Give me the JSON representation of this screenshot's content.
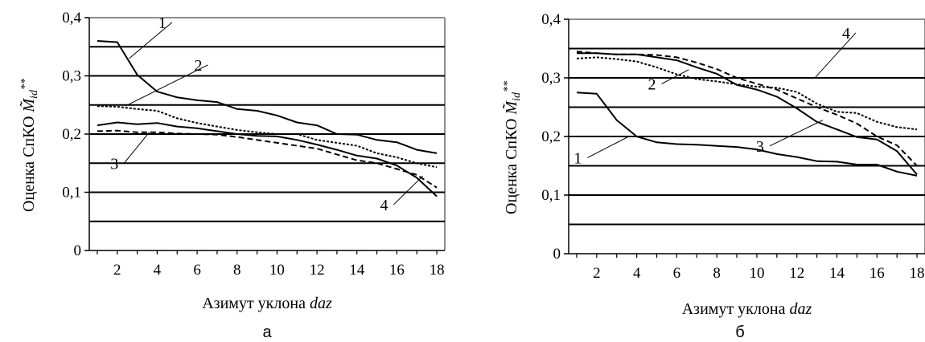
{
  "chart_data": [
    {
      "type": "line",
      "panel_label": "а",
      "xlabel_text": "Азимут уклона ",
      "xlabel_italic": "daz",
      "ylabel_text": "Оценка СпКО ",
      "ylabel_symbol": "M̃",
      "ylabel_sub": "id",
      "ylabel_sup": "**",
      "xlim": [
        0.6,
        18.4
      ],
      "ylim": [
        0,
        0.4
      ],
      "x_ticks": [
        2,
        4,
        6,
        8,
        10,
        12,
        14,
        16,
        18
      ],
      "y_ticks": [
        0,
        0.1,
        0.2,
        0.3,
        0.4
      ],
      "y_tick_labels": [
        "0",
        "0,1",
        "0,2",
        "0,3",
        "0,4"
      ],
      "grid_y": [
        0.05,
        0.1,
        0.15,
        0.2,
        0.25,
        0.3,
        0.35
      ],
      "x": [
        1,
        2,
        3,
        4,
        5,
        6,
        7,
        8,
        9,
        10,
        11,
        12,
        13,
        14,
        15,
        16,
        17,
        18
      ],
      "series": [
        {
          "name": "1",
          "style": "solid",
          "values": [
            0.36,
            0.358,
            0.302,
            0.273,
            0.263,
            0.258,
            0.255,
            0.243,
            0.24,
            0.232,
            0.22,
            0.215,
            0.2,
            0.199,
            0.19,
            0.186,
            0.173,
            0.167
          ]
        },
        {
          "name": "2",
          "style": "dotted",
          "values": [
            0.248,
            0.247,
            0.243,
            0.24,
            0.227,
            0.219,
            0.213,
            0.207,
            0.203,
            0.2,
            0.2,
            0.19,
            0.185,
            0.18,
            0.167,
            0.16,
            0.15,
            0.143
          ]
        },
        {
          "name": "3",
          "style": "solid",
          "values": [
            0.215,
            0.22,
            0.217,
            0.219,
            0.213,
            0.21,
            0.205,
            0.2,
            0.197,
            0.196,
            0.19,
            0.182,
            0.173,
            0.163,
            0.158,
            0.146,
            0.125,
            0.093
          ]
        },
        {
          "name": "4",
          "style": "dashed",
          "values": [
            0.205,
            0.206,
            0.203,
            0.203,
            0.201,
            0.2,
            0.199,
            0.195,
            0.19,
            0.185,
            0.18,
            0.175,
            0.165,
            0.155,
            0.15,
            0.14,
            0.13,
            0.108
          ]
        }
      ],
      "labels": [
        {
          "text": "1",
          "x": 4.5,
          "y": 0.385,
          "to": [
            2.6,
            0.33
          ]
        },
        {
          "text": "2",
          "x": 6.3,
          "y": 0.312,
          "to": [
            2.4,
            0.248
          ]
        },
        {
          "text": "3",
          "x": 2.1,
          "y": 0.143,
          "to": [
            3.6,
            0.203
          ]
        },
        {
          "text": "4",
          "x": 15.6,
          "y": 0.072,
          "to": [
            17.3,
            0.128
          ]
        }
      ]
    },
    {
      "type": "line",
      "panel_label": "б",
      "xlabel_text": "Азимут уклона ",
      "xlabel_italic": "daz",
      "ylabel_text": "Оценка СпКО ",
      "ylabel_symbol": "M̃",
      "ylabel_sub": "id",
      "ylabel_sup": "**",
      "xlim": [
        0.6,
        18.4
      ],
      "ylim": [
        0,
        0.4
      ],
      "x_ticks": [
        2,
        4,
        6,
        8,
        10,
        12,
        14,
        16,
        18
      ],
      "y_ticks": [
        0,
        0.1,
        0.2,
        0.3,
        0.4
      ],
      "y_tick_labels": [
        "0",
        "0,1",
        "0,2",
        "0,3",
        "0,4"
      ],
      "grid_y": [
        0.05,
        0.1,
        0.15,
        0.2,
        0.25,
        0.3,
        0.35
      ],
      "x": [
        1,
        2,
        3,
        4,
        5,
        6,
        7,
        8,
        9,
        10,
        11,
        12,
        13,
        14,
        15,
        16,
        17,
        18
      ],
      "series": [
        {
          "name": "1",
          "style": "solid",
          "values": [
            0.275,
            0.273,
            0.228,
            0.2,
            0.19,
            0.187,
            0.186,
            0.184,
            0.182,
            0.178,
            0.17,
            0.165,
            0.158,
            0.157,
            0.152,
            0.152,
            0.14,
            0.133
          ]
        },
        {
          "name": "2",
          "style": "dotted",
          "values": [
            0.333,
            0.335,
            0.332,
            0.328,
            0.318,
            0.306,
            0.298,
            0.294,
            0.289,
            0.285,
            0.283,
            0.276,
            0.256,
            0.242,
            0.24,
            0.225,
            0.216,
            0.212
          ]
        },
        {
          "name": "3",
          "style": "solid",
          "values": [
            0.342,
            0.342,
            0.34,
            0.34,
            0.335,
            0.33,
            0.318,
            0.307,
            0.288,
            0.28,
            0.268,
            0.248,
            0.225,
            0.212,
            0.199,
            0.195,
            0.175,
            0.135
          ]
        },
        {
          "name": "4",
          "style": "dashed",
          "values": [
            0.345,
            0.342,
            0.34,
            0.34,
            0.339,
            0.335,
            0.326,
            0.315,
            0.3,
            0.29,
            0.28,
            0.265,
            0.25,
            0.237,
            0.222,
            0.2,
            0.185,
            0.15
          ]
        }
      ],
      "labels": [
        {
          "text": "1",
          "x": 1.3,
          "y": 0.157,
          "to": [
            3.6,
            0.2
          ]
        },
        {
          "text": "2",
          "x": 5.0,
          "y": 0.283,
          "to": [
            6.6,
            0.314
          ]
        },
        {
          "text": "3",
          "x": 10.4,
          "y": 0.177,
          "to": [
            13.3,
            0.228
          ]
        },
        {
          "text": "4",
          "x": 14.7,
          "y": 0.37,
          "to": [
            12.9,
            0.3
          ]
        }
      ]
    }
  ]
}
